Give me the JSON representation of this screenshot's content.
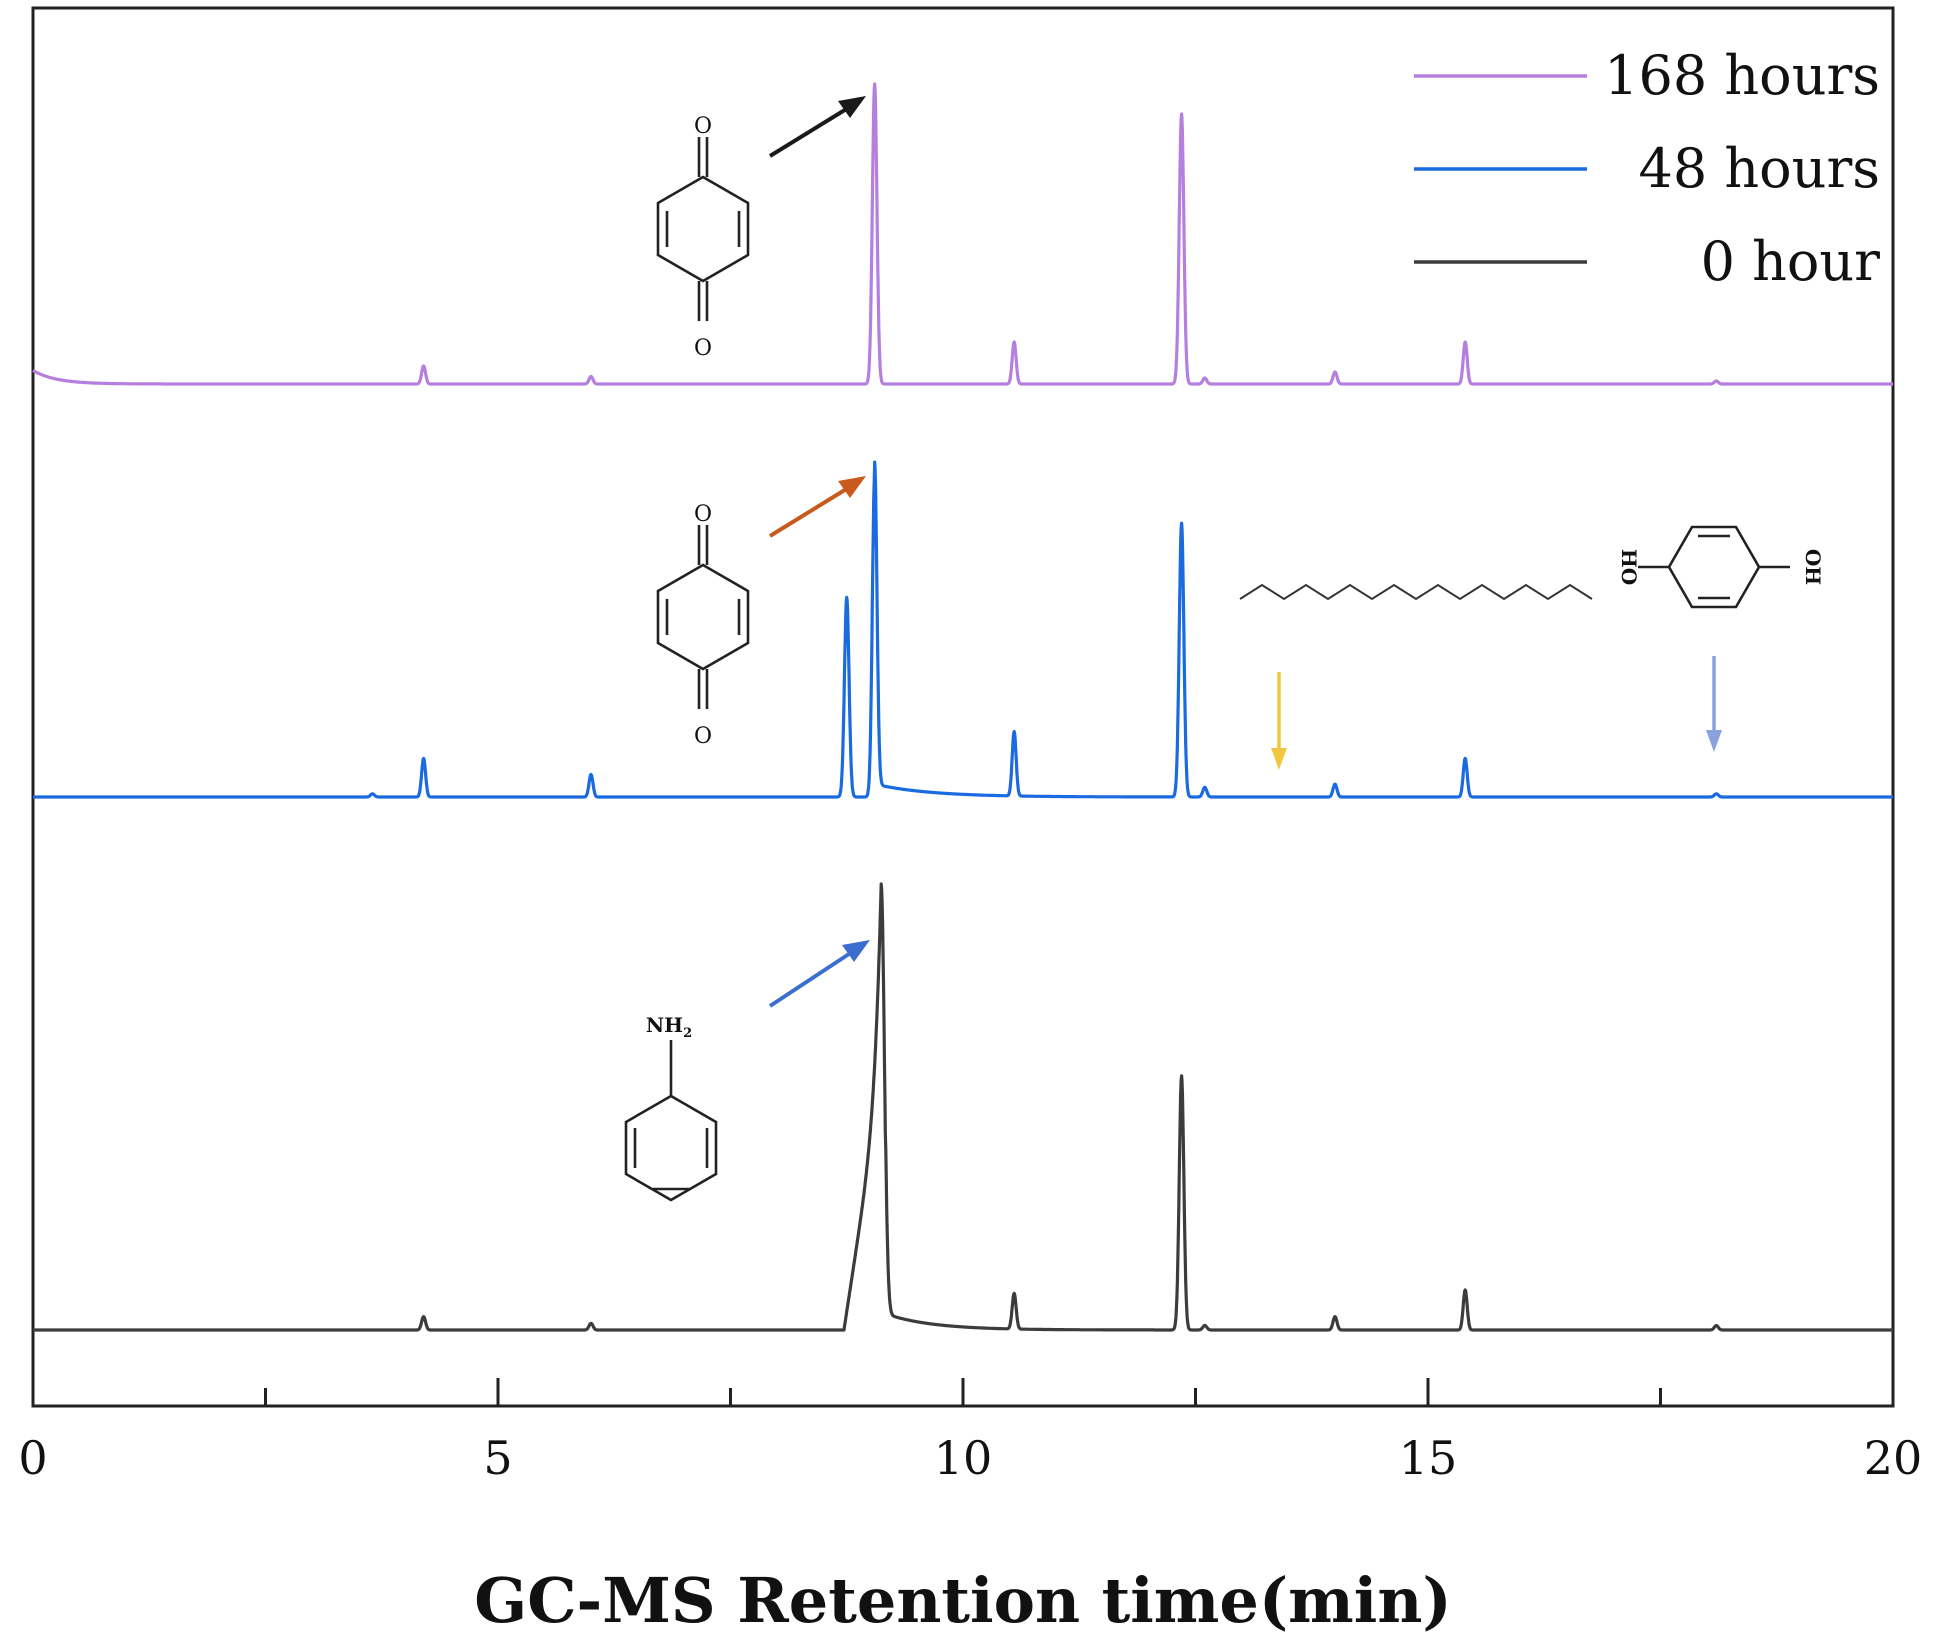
{
  "chart_data": {
    "type": "line",
    "xlabel": "GC-MS Retention time(min)",
    "xlim": [
      0,
      20
    ],
    "xticks": [
      0,
      5,
      10,
      15,
      20
    ],
    "x_minor_step": 2.5,
    "y_axis_visible": false,
    "grid": false,
    "legend_position": "top-right",
    "series": [
      {
        "name": "168 hours",
        "color": "#b57fe0",
        "peaks": [
          {
            "x": 4.2,
            "h": 0.06
          },
          {
            "x": 6.0,
            "h": 0.025
          },
          {
            "x": 9.05,
            "h": 1.0
          },
          {
            "x": 10.55,
            "h": 0.14
          },
          {
            "x": 12.35,
            "h": 0.9
          },
          {
            "x": 12.6,
            "h": 0.02
          },
          {
            "x": 14.0,
            "h": 0.04
          },
          {
            "x": 15.4,
            "h": 0.14
          },
          {
            "x": 18.1,
            "h": 0.01
          }
        ]
      },
      {
        "name": "48 hours",
        "color": "#1a6ae0",
        "peaks": [
          {
            "x": 3.65,
            "h": 0.01
          },
          {
            "x": 4.2,
            "h": 0.12
          },
          {
            "x": 6.0,
            "h": 0.07
          },
          {
            "x": 8.75,
            "h": 0.62
          },
          {
            "x": 9.05,
            "h": 1.0
          },
          {
            "x": 10.55,
            "h": 0.2
          },
          {
            "x": 12.35,
            "h": 0.85
          },
          {
            "x": 12.6,
            "h": 0.03
          },
          {
            "x": 14.0,
            "h": 0.04
          },
          {
            "x": 15.4,
            "h": 0.12
          },
          {
            "x": 18.1,
            "h": 0.01
          }
        ]
      },
      {
        "name": "0 hour",
        "color": "#3c3c3c",
        "peaks": [
          {
            "x": 4.2,
            "h": 0.03
          },
          {
            "x": 6.0,
            "h": 0.015
          },
          {
            "x": 9.12,
            "h": 1.0
          },
          {
            "x": 10.55,
            "h": 0.08
          },
          {
            "x": 12.35,
            "h": 0.57
          },
          {
            "x": 12.6,
            "h": 0.01
          },
          {
            "x": 14.0,
            "h": 0.03
          },
          {
            "x": 15.4,
            "h": 0.09
          },
          {
            "x": 18.1,
            "h": 0.01
          }
        ]
      }
    ],
    "annotations": [
      {
        "structure": "p-benzoquinone",
        "trace": "168 hours",
        "points_to_x": 9.05,
        "arrow_color": "#1a1a1a",
        "atom_labels": [
          "O",
          "O"
        ]
      },
      {
        "structure": "p-benzoquinone",
        "trace": "48 hours",
        "points_to_x": 9.05,
        "arrow_color": "#c85a1e",
        "atom_labels": [
          "O",
          "O"
        ]
      },
      {
        "structure": "aniline",
        "trace": "0 hour",
        "points_to_x": 9.12,
        "arrow_color": "#3c6ed0",
        "atom_labels": [
          "NH",
          "2"
        ]
      },
      {
        "structure": "alkane chain",
        "trace": "48 hours",
        "points_to_x": 13.4,
        "arrow_color": "#f0c840"
      },
      {
        "structure": "hydroquinone",
        "trace": "48 hours",
        "points_to_x": 18.1,
        "arrow_color": "#8aa2e0",
        "atom_labels": [
          "HO",
          "OH"
        ]
      }
    ]
  }
}
